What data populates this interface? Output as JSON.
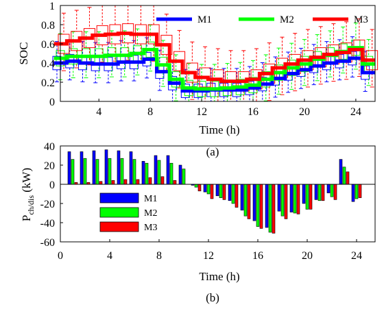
{
  "colors": {
    "M1": "#0000ff",
    "M2": "#00ff00",
    "M3": "#ff0000",
    "axis": "#000000"
  },
  "chart_data": [
    {
      "type": "line",
      "subtitle": "(a)",
      "xlabel": "Time (h)",
      "ylabel": "SOC",
      "xlim": [
        1,
        25.5
      ],
      "ylim": [
        0,
        1
      ],
      "xticks": [
        "4",
        "8",
        "12",
        "16",
        "20",
        "24"
      ],
      "yticks": [
        "0",
        "0.2",
        "0.4",
        "0.6",
        "0.8",
        "1"
      ],
      "legend": {
        "placement": "top-right",
        "entries": [
          "M1",
          "M2",
          "M3"
        ]
      },
      "note": "step-line medians with box-and-whisker spread per hour",
      "x": [
        1,
        2,
        3,
        4,
        5,
        6,
        7,
        8,
        9,
        10,
        11,
        12,
        13,
        14,
        15,
        16,
        17,
        18,
        19,
        20,
        21,
        22,
        23,
        24,
        25
      ],
      "series": [
        {
          "name": "M1",
          "values": [
            0.4,
            0.42,
            0.4,
            0.39,
            0.39,
            0.41,
            0.41,
            0.44,
            0.31,
            0.19,
            0.11,
            0.11,
            0.12,
            0.12,
            0.12,
            0.14,
            0.18,
            0.24,
            0.29,
            0.33,
            0.37,
            0.4,
            0.42,
            0.45,
            0.3
          ]
        },
        {
          "name": "M2",
          "values": [
            0.45,
            0.47,
            0.47,
            0.47,
            0.48,
            0.48,
            0.5,
            0.54,
            0.38,
            0.23,
            0.14,
            0.13,
            0.13,
            0.14,
            0.15,
            0.17,
            0.23,
            0.3,
            0.35,
            0.39,
            0.44,
            0.48,
            0.52,
            0.56,
            0.39
          ]
        },
        {
          "name": "M3",
          "values": [
            0.6,
            0.63,
            0.66,
            0.69,
            0.7,
            0.71,
            0.7,
            0.7,
            0.59,
            0.42,
            0.3,
            0.25,
            0.23,
            0.21,
            0.21,
            0.23,
            0.29,
            0.35,
            0.39,
            0.43,
            0.46,
            0.49,
            0.51,
            0.54,
            0.43
          ]
        }
      ]
    },
    {
      "type": "bar",
      "subtitle": "(b)",
      "xlabel": "Time (h)",
      "ylabel": "P",
      "ylabel_sub": "ch/dis",
      "ylabel_unit": " (kW)",
      "xlim": [
        0,
        25.5
      ],
      "ylim": [
        -60,
        40
      ],
      "xticks": [
        "0",
        "4",
        "8",
        "12",
        "16",
        "20",
        "24"
      ],
      "yticks": [
        "-60",
        "-40",
        "-20",
        "0",
        "20",
        "40"
      ],
      "legend": {
        "placement": "left",
        "entries": [
          "M1",
          "M2",
          "M3"
        ]
      },
      "x": [
        1,
        2,
        3,
        4,
        5,
        6,
        7,
        8,
        9,
        10,
        11,
        12,
        13,
        14,
        15,
        16,
        17,
        18,
        19,
        20,
        21,
        22,
        23,
        24
      ],
      "series": [
        {
          "name": "M1",
          "values": [
            34,
            34,
            35,
            36,
            35,
            34,
            24,
            30,
            30,
            20,
            -1,
            -8,
            -12,
            -17,
            -27,
            -38,
            -45,
            -28,
            -29,
            -20,
            -16,
            -9,
            26,
            -18
          ]
        },
        {
          "name": "M2",
          "values": [
            26,
            27,
            26,
            27,
            27,
            26,
            22,
            25,
            22,
            16,
            -3,
            -10,
            -14,
            -20,
            -33,
            -44,
            -50,
            -33,
            -30,
            -26,
            -17,
            -13,
            18,
            -15
          ]
        },
        {
          "name": "M3",
          "values": [
            2,
            2,
            3,
            4,
            5,
            5,
            7,
            8,
            4,
            0,
            -7,
            -15,
            -16,
            -24,
            -36,
            -46,
            -51,
            -36,
            -31,
            -26,
            -17,
            -16,
            13,
            -14
          ]
        }
      ]
    }
  ]
}
